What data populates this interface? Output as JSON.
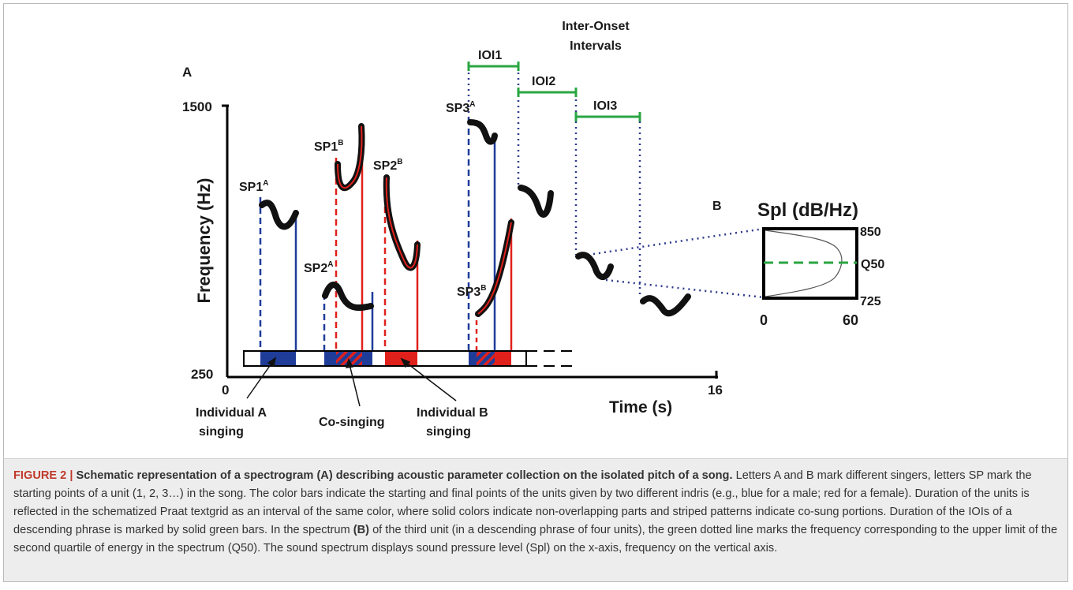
{
  "panel_a": {
    "label": "A",
    "y_axis_title": "Frequency (Hz)",
    "y_max": "1500",
    "y_min": "250",
    "x_min": "0",
    "x_max": "16",
    "x_axis_title": "Time (s)",
    "sp_labels": [
      {
        "base": "SP1",
        "sup": "A"
      },
      {
        "base": "SP1",
        "sup": "B"
      },
      {
        "base": "SP2",
        "sup": "B"
      },
      {
        "base": "SP2",
        "sup": "A"
      },
      {
        "base": "SP3",
        "sup": "A"
      },
      {
        "base": "SP3",
        "sup": "B"
      }
    ],
    "annotations": {
      "individual_a": [
        "Individual A",
        "singing"
      ],
      "co_singing": "Co-singing",
      "individual_b": [
        "Individual B",
        "singing"
      ]
    },
    "ioi_title": [
      "Inter-Onset",
      "Intervals"
    ],
    "ioi_labels": [
      "IOI1",
      "IOI2",
      "IOI3"
    ]
  },
  "panel_b": {
    "label": "B",
    "title": "Spl (dB/Hz)",
    "y_top": "850",
    "y_bottom": "725",
    "x_left": "0",
    "x_right": "60",
    "q50_label": "Q50"
  },
  "colors": {
    "individual_a": "#1f3c99",
    "individual_b": "#e0201b",
    "ioi": "#2aa642",
    "pitch": "#111111",
    "q50": "#2aa642"
  },
  "caption": {
    "figure_number": "FIGURE 2 | ",
    "title": "Schematic representation of a spectrogram (A) describing acoustic parameter collection on the isolated pitch of a song.",
    "text_1": " Letters A and B mark different singers, letters SP mark the starting points of a unit (1, 2, 3…) in the song. The color bars indicate the starting and final points of the units given by two different indris (e.g., blue for a male; red for a female). Duration of the units is reflected in the schematized Praat textgrid as an interval of the same color, where solid colors indicate non-overlapping parts and striped patterns indicate co-sung portions. Duration of the IOIs of a descending phrase is marked by solid green bars. In the spectrum ",
    "panel_ref": "(B)",
    "text_2": " of the third unit (in a descending phrase of four units), the green dotted line marks the frequency corresponding to the upper limit of the second quartile of energy in the spectrum (Q50). The sound spectrum displays sound pressure level (Spl) on the x-axis, frequency on the vertical axis."
  }
}
